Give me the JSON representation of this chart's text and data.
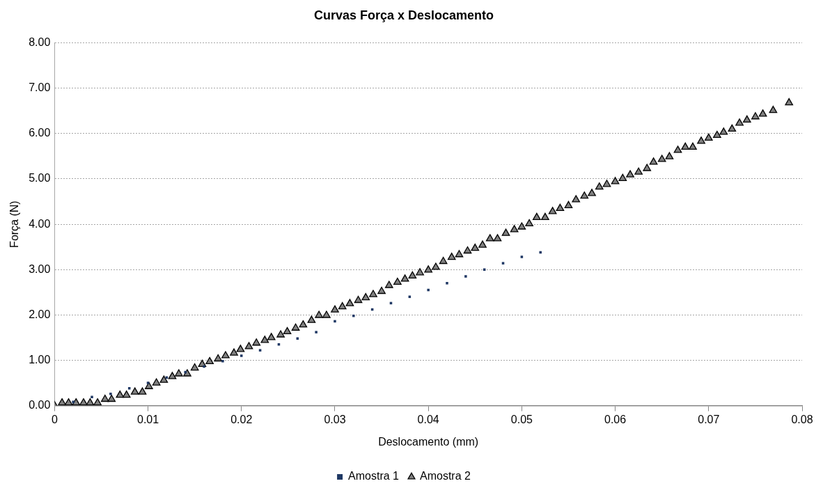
{
  "chart_data": {
    "type": "scatter",
    "title": "Curvas Força x Deslocamento",
    "xlabel": "Deslocamento (mm)",
    "ylabel": "Força (N)",
    "xlim": [
      0,
      0.08
    ],
    "xticks": [
      0,
      0.01,
      0.02,
      0.03,
      0.04,
      0.05,
      0.06,
      0.07,
      0.08
    ],
    "ylim": [
      0,
      8
    ],
    "yticks": [
      {
        "value": 0,
        "label": "0.00"
      },
      {
        "value": 1,
        "label": "1.00"
      },
      {
        "value": 2,
        "label": "2.00"
      },
      {
        "value": 3,
        "label": "3.00"
      },
      {
        "value": 4,
        "label": "4.00"
      },
      {
        "value": 5,
        "label": "5.00"
      },
      {
        "value": 6,
        "label": "6.00"
      },
      {
        "value": 7,
        "label": "7.00"
      },
      {
        "value": 8,
        "label": "8.00"
      }
    ],
    "grid": "y",
    "legend": "bottom",
    "series": [
      {
        "name": "Amostra 1",
        "color": "#1f3864",
        "marker": "square",
        "x": [
          0.002,
          0.004,
          0.006,
          0.008,
          0.01,
          0.012,
          0.014,
          0.016,
          0.018,
          0.02,
          0.022,
          0.024,
          0.026,
          0.028,
          0.03,
          0.032,
          0.034,
          0.036,
          0.038,
          0.04,
          0.042,
          0.044,
          0.046,
          0.048,
          0.05,
          0.052
        ],
        "values": [
          0.08,
          0.19,
          0.26,
          0.38,
          0.5,
          0.62,
          0.74,
          0.86,
          0.98,
          1.1,
          1.22,
          1.35,
          1.48,
          1.62,
          1.86,
          1.98,
          2.12,
          2.26,
          2.4,
          2.55,
          2.7,
          2.85,
          3.0,
          3.14,
          3.28,
          3.38
        ]
      },
      {
        "name": "Amostra 2",
        "color": "#808080",
        "marker": "triangle",
        "x": [
          0,
          0.0008,
          0.0015,
          0.0023,
          0.0031,
          0.0038,
          0.0046,
          0.0054,
          0.0061,
          0.007,
          0.0077,
          0.0086,
          0.0094,
          0.0101,
          0.0109,
          0.0117,
          0.0126,
          0.0133,
          0.0142,
          0.015,
          0.0158,
          0.0166,
          0.0175,
          0.0183,
          0.0192,
          0.0199,
          0.0208,
          0.0216,
          0.0225,
          0.0232,
          0.0242,
          0.0249,
          0.0258,
          0.0266,
          0.0275,
          0.0283,
          0.0291,
          0.03,
          0.0308,
          0.0316,
          0.0325,
          0.0333,
          0.0341,
          0.035,
          0.0358,
          0.0367,
          0.0375,
          0.0383,
          0.0391,
          0.04,
          0.0408,
          0.0416,
          0.0425,
          0.0433,
          0.0442,
          0.045,
          0.0458,
          0.0466,
          0.0474,
          0.0483,
          0.0492,
          0.05,
          0.0508,
          0.0516,
          0.0525,
          0.0533,
          0.0541,
          0.055,
          0.0558,
          0.0567,
          0.0575,
          0.0583,
          0.0591,
          0.06,
          0.0608,
          0.0616,
          0.0625,
          0.0634,
          0.0641,
          0.065,
          0.0658,
          0.0667,
          0.0675,
          0.0683,
          0.0692,
          0.07,
          0.0709,
          0.0716,
          0.0725,
          0.0733,
          0.0741,
          0.075,
          0.0758,
          0.0769,
          0.0786
        ],
        "values": [
          0,
          0.06,
          0.06,
          0.06,
          0.06,
          0.06,
          0.06,
          0.14,
          0.14,
          0.23,
          0.23,
          0.3,
          0.3,
          0.42,
          0.5,
          0.56,
          0.64,
          0.7,
          0.7,
          0.83,
          0.91,
          0.97,
          1.03,
          1.1,
          1.16,
          1.24,
          1.3,
          1.38,
          1.44,
          1.5,
          1.56,
          1.63,
          1.71,
          1.78,
          1.88,
          1.99,
          1.99,
          2.11,
          2.18,
          2.25,
          2.32,
          2.38,
          2.45,
          2.52,
          2.65,
          2.72,
          2.79,
          2.86,
          2.93,
          2.99,
          3.05,
          3.18,
          3.27,
          3.33,
          3.41,
          3.47,
          3.54,
          3.68,
          3.68,
          3.8,
          3.88,
          3.94,
          4.01,
          4.15,
          4.15,
          4.28,
          4.35,
          4.41,
          4.54,
          4.62,
          4.68,
          4.82,
          4.88,
          4.94,
          5.01,
          5.09,
          5.15,
          5.23,
          5.37,
          5.43,
          5.49,
          5.63,
          5.7,
          5.7,
          5.83,
          5.9,
          5.96,
          6.03,
          6.1,
          6.23,
          6.3,
          6.37,
          6.43,
          6.51,
          6.68
        ]
      }
    ]
  }
}
